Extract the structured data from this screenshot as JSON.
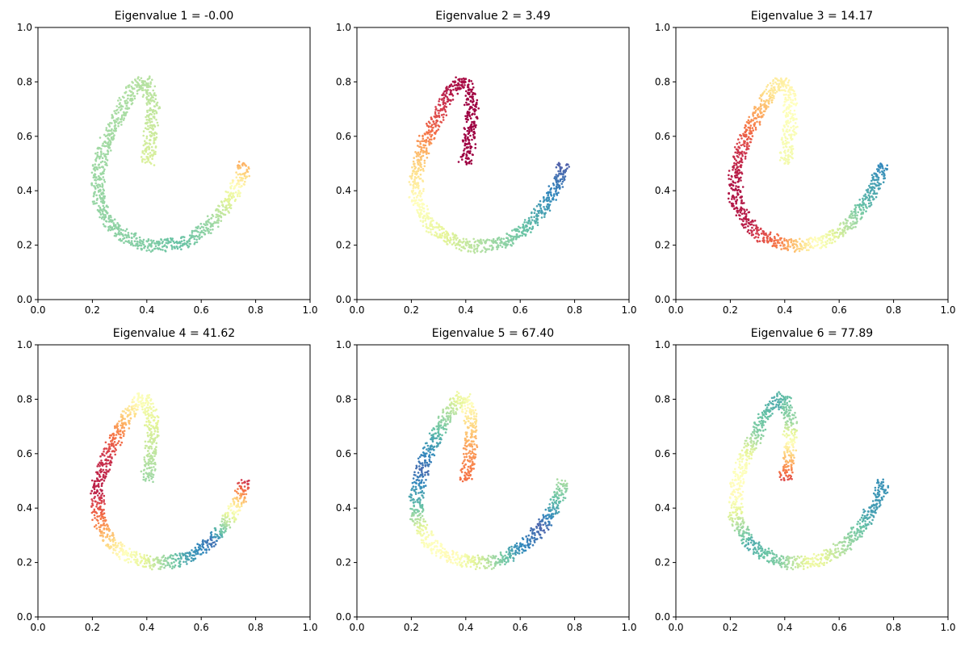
{
  "chart_data": [
    {
      "type": "scatter",
      "title": "Eigenvalue 1 = -0.00",
      "eigenvalue": -0.0,
      "xlim": [
        0,
        1
      ],
      "ylim": [
        0,
        1
      ],
      "xticks": [
        "0.0",
        "0.2",
        "0.4",
        "0.6",
        "0.8",
        "1.0"
      ],
      "yticks": [
        "0.0",
        "0.2",
        "0.4",
        "0.6",
        "0.8",
        "1.0"
      ],
      "colormap": "Spectral",
      "color_knots": [
        [
          0.0,
          0.62
        ],
        [
          0.12,
          0.66
        ],
        [
          0.28,
          0.7
        ],
        [
          0.45,
          0.72
        ],
        [
          0.58,
          0.74
        ],
        [
          0.68,
          0.76
        ],
        [
          0.75,
          0.8
        ],
        [
          0.84,
          0.72
        ],
        [
          0.92,
          0.58
        ],
        [
          1.0,
          0.3
        ]
      ]
    },
    {
      "type": "scatter",
      "title": "Eigenvalue 2 = 3.49",
      "eigenvalue": 3.49,
      "xlim": [
        0,
        1
      ],
      "ylim": [
        0,
        1
      ],
      "xticks": [
        "0.0",
        "0.2",
        "0.4",
        "0.6",
        "0.8",
        "1.0"
      ],
      "yticks": [
        "0.0",
        "0.2",
        "0.4",
        "0.6",
        "0.8",
        "1.0"
      ],
      "colormap": "Spectral",
      "color_knots": [
        [
          0.0,
          0.0
        ],
        [
          0.14,
          0.0
        ],
        [
          0.24,
          0.03
        ],
        [
          0.34,
          0.18
        ],
        [
          0.42,
          0.36
        ],
        [
          0.5,
          0.48
        ],
        [
          0.58,
          0.56
        ],
        [
          0.68,
          0.66
        ],
        [
          0.78,
          0.76
        ],
        [
          0.88,
          0.86
        ],
        [
          1.0,
          0.97
        ]
      ]
    },
    {
      "type": "scatter",
      "title": "Eigenvalue 3 = 14.17",
      "eigenvalue": 14.17,
      "xlim": [
        0,
        1
      ],
      "ylim": [
        0,
        1
      ],
      "xticks": [
        "0.0",
        "0.2",
        "0.4",
        "0.6",
        "0.8",
        "1.0"
      ],
      "yticks": [
        "0.0",
        "0.2",
        "0.4",
        "0.6",
        "0.8",
        "1.0"
      ],
      "colormap": "Spectral",
      "color_knots": [
        [
          0.0,
          0.55
        ],
        [
          0.14,
          0.5
        ],
        [
          0.24,
          0.42
        ],
        [
          0.32,
          0.25
        ],
        [
          0.4,
          0.08
        ],
        [
          0.48,
          0.03
        ],
        [
          0.58,
          0.05
        ],
        [
          0.66,
          0.22
        ],
        [
          0.74,
          0.48
        ],
        [
          0.82,
          0.66
        ],
        [
          0.9,
          0.82
        ],
        [
          1.0,
          0.9
        ]
      ]
    },
    {
      "type": "scatter",
      "title": "Eigenvalue 4 = 41.62",
      "eigenvalue": 41.62,
      "xlim": [
        0,
        1
      ],
      "ylim": [
        0,
        1
      ],
      "xticks": [
        "0.0",
        "0.2",
        "0.4",
        "0.6",
        "0.8",
        "1.0"
      ],
      "yticks": [
        "0.0",
        "0.2",
        "0.4",
        "0.6",
        "0.8",
        "1.0"
      ],
      "colormap": "Spectral",
      "color_knots": [
        [
          0.0,
          0.72
        ],
        [
          0.12,
          0.62
        ],
        [
          0.22,
          0.5
        ],
        [
          0.3,
          0.25
        ],
        [
          0.37,
          0.08
        ],
        [
          0.45,
          0.05
        ],
        [
          0.52,
          0.22
        ],
        [
          0.6,
          0.46
        ],
        [
          0.68,
          0.62
        ],
        [
          0.76,
          0.84
        ],
        [
          0.84,
          0.94
        ],
        [
          0.92,
          0.55
        ],
        [
          1.0,
          0.08
        ]
      ]
    },
    {
      "type": "scatter",
      "title": "Eigenvalue 5 = 67.40",
      "eigenvalue": 67.4,
      "xlim": [
        0,
        1
      ],
      "ylim": [
        0,
        1
      ],
      "xticks": [
        "0.0",
        "0.2",
        "0.4",
        "0.6",
        "0.8",
        "1.0"
      ],
      "yticks": [
        "0.0",
        "0.2",
        "0.4",
        "0.6",
        "0.8",
        "1.0"
      ],
      "colormap": "Spectral",
      "color_knots": [
        [
          0.0,
          0.2
        ],
        [
          0.08,
          0.28
        ],
        [
          0.16,
          0.45
        ],
        [
          0.24,
          0.66
        ],
        [
          0.32,
          0.84
        ],
        [
          0.4,
          0.95
        ],
        [
          0.48,
          0.82
        ],
        [
          0.56,
          0.52
        ],
        [
          0.64,
          0.48
        ],
        [
          0.72,
          0.66
        ],
        [
          0.8,
          0.88
        ],
        [
          0.88,
          0.96
        ],
        [
          1.0,
          0.7
        ]
      ]
    },
    {
      "type": "scatter",
      "title": "Eigenvalue 6 = 77.89",
      "eigenvalue": 77.89,
      "xlim": [
        0,
        1
      ],
      "ylim": [
        0,
        1
      ],
      "xticks": [
        "0.0",
        "0.2",
        "0.4",
        "0.6",
        "0.8",
        "1.0"
      ],
      "yticks": [
        "0.0",
        "0.2",
        "0.4",
        "0.6",
        "0.8",
        "1.0"
      ],
      "colormap": "Spectral",
      "color_knots": [
        [
          0.0,
          0.12
        ],
        [
          0.07,
          0.4
        ],
        [
          0.14,
          0.72
        ],
        [
          0.22,
          0.84
        ],
        [
          0.3,
          0.76
        ],
        [
          0.38,
          0.52
        ],
        [
          0.46,
          0.48
        ],
        [
          0.52,
          0.66
        ],
        [
          0.58,
          0.84
        ],
        [
          0.66,
          0.76
        ],
        [
          0.74,
          0.56
        ],
        [
          0.82,
          0.7
        ],
        [
          0.92,
          0.86
        ],
        [
          1.0,
          0.88
        ]
      ]
    }
  ]
}
